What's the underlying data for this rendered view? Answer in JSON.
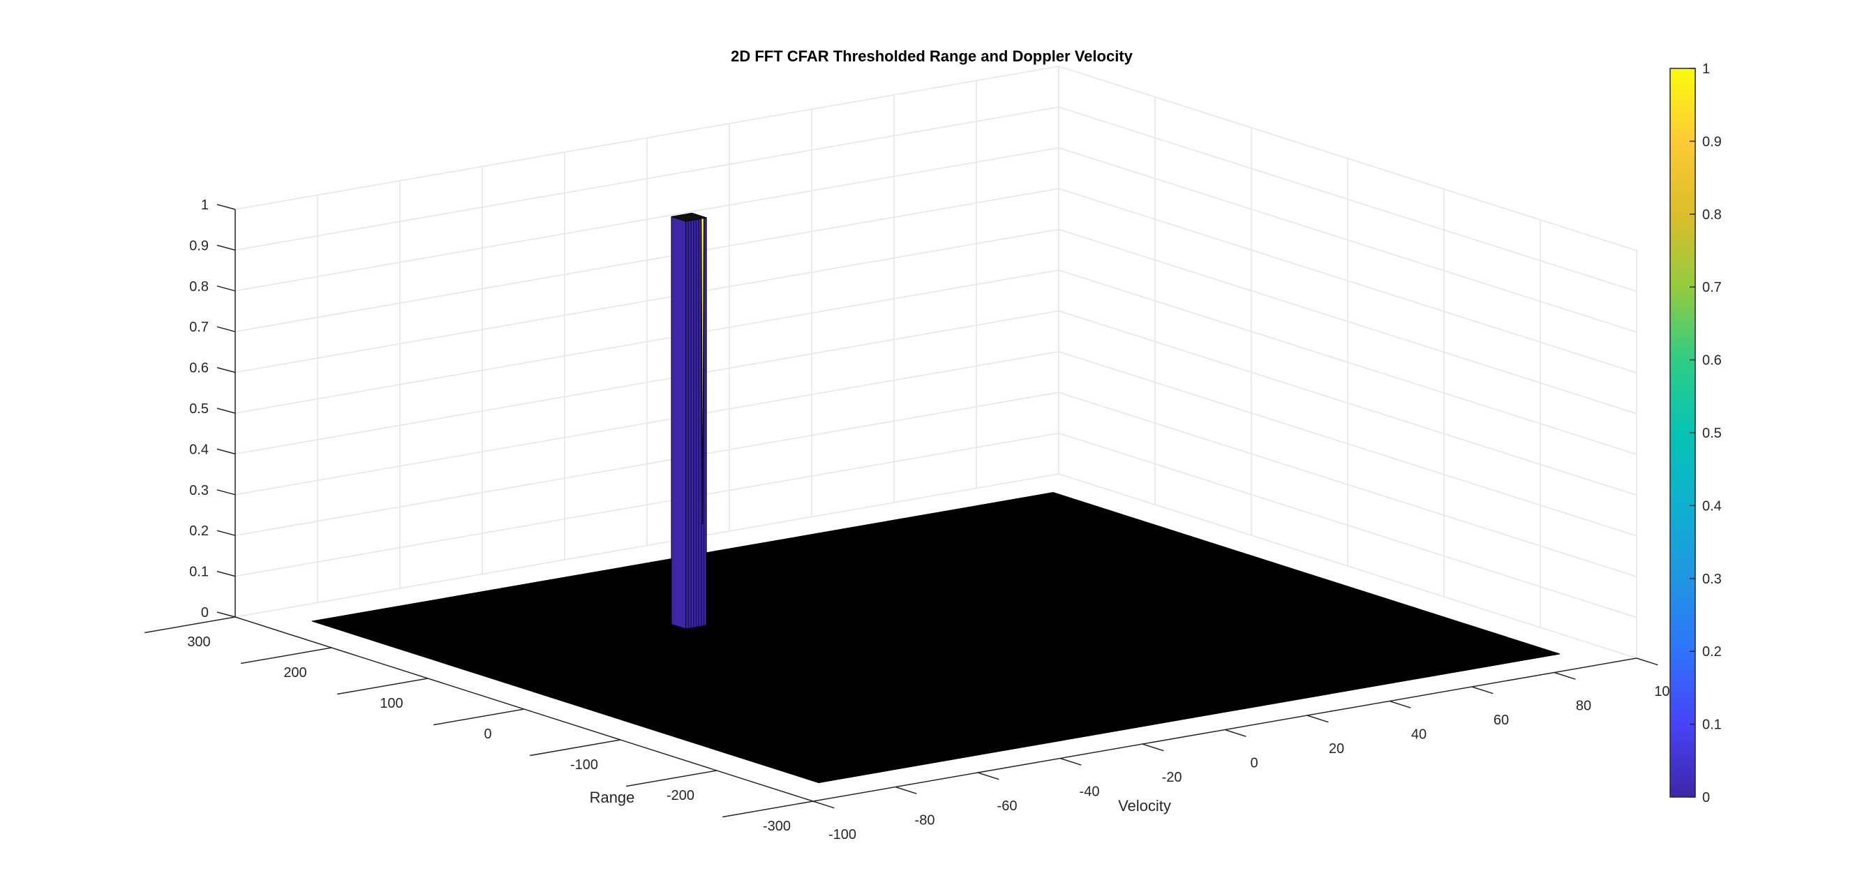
{
  "chart_data": {
    "type": "surface",
    "title": "2D FFT CFAR Thresholded Range and Doppler Velocity",
    "xlabel": "Velocity",
    "ylabel": "Range",
    "zlabel": "",
    "xlim": [
      -100,
      100
    ],
    "ylim": [
      -300,
      300
    ],
    "zlim": [
      0,
      1
    ],
    "x_ticks": [
      "-100",
      "-80",
      "-60",
      "-40",
      "-20",
      "0",
      "20",
      "40",
      "60",
      "80",
      "100"
    ],
    "y_ticks": [
      "-300",
      "-200",
      "-100",
      "0",
      "100",
      "200",
      "300"
    ],
    "z_ticks": [
      "0",
      "0.1",
      "0.2",
      "0.3",
      "0.4",
      "0.5",
      "0.6",
      "0.7",
      "0.8",
      "0.9",
      "1"
    ],
    "surface_extent": {
      "velocity": [
        -90,
        90
      ],
      "range": [
        -263,
        263
      ]
    },
    "detection": {
      "velocity_range": [
        -35,
        -30
      ],
      "range_range": [
        110,
        125
      ],
      "value": 1
    },
    "colorbar": {
      "ticks": [
        "0",
        "0.1",
        "0.2",
        "0.3",
        "0.4",
        "0.5",
        "0.6",
        "0.7",
        "0.8",
        "0.9",
        "1"
      ],
      "colormap": "parula"
    },
    "colors": {
      "floor": "#000000",
      "low": "#3e26a8",
      "high": "#f9fb0e",
      "grid": "#e6e6e6",
      "axis": "#262626"
    },
    "grid": true
  }
}
